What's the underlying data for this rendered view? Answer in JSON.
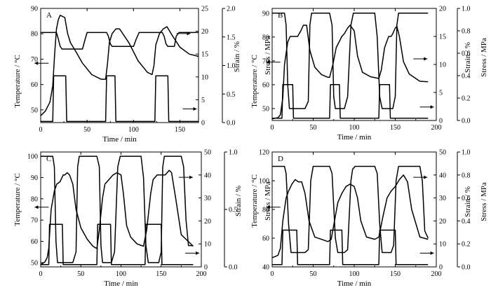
{
  "chart_data": [
    {
      "type": "line",
      "panel": "A",
      "xlabel": "Time / min",
      "ylabel_left": "Temperature / °C",
      "ylabel_right1": "Strain / %",
      "ylabel_right2": "Stress / MPa",
      "xlim": [
        0,
        170
      ],
      "x_ticks": [
        "0",
        "50",
        "100",
        "150"
      ],
      "ylim_temp": [
        45,
        90
      ],
      "temp_ticks": [
        "50",
        "60",
        "70",
        "80",
        "90"
      ],
      "ylim_strain": [
        0,
        25
      ],
      "strain_ticks": [
        "0",
        "5",
        "10",
        "15",
        "20",
        "25"
      ],
      "ylim_stress": [
        0,
        2.0
      ],
      "stress_ticks": [
        "0.0",
        "0.5",
        "1.0",
        "1.5",
        "2.0"
      ],
      "series": [
        {
          "axis": "temp",
          "x": [
            0,
            17,
            19,
            21,
            23,
            27,
            31,
            45,
            48,
            50,
            71,
            73,
            75,
            77,
            79,
            82,
            87,
            100,
            103,
            106,
            131,
            133,
            135,
            137,
            140,
            144,
            146,
            149,
            170
          ],
          "y": [
            80.5,
            80.5,
            78,
            75,
            74,
            74,
            74,
            74,
            78,
            80.5,
            80.5,
            79,
            76,
            75,
            75,
            75,
            75,
            75,
            78,
            80.5,
            80.5,
            79,
            76,
            75,
            75,
            75,
            79,
            80.5,
            80.5
          ]
        },
        {
          "axis": "strain",
          "x": [
            0,
            5,
            10,
            13,
            15,
            17,
            19,
            21,
            26,
            29,
            32,
            38,
            45,
            55,
            65,
            70,
            72,
            74,
            77,
            81,
            85,
            95,
            105,
            115,
            120,
            122,
            124,
            128,
            132,
            136,
            142,
            150,
            160,
            170
          ],
          "y": [
            1.5,
            2.5,
            4.5,
            8,
            15,
            20.5,
            22.5,
            23.5,
            23,
            19.5,
            17.5,
            15.5,
            13,
            10.5,
            9.5,
            9.5,
            13,
            17.5,
            19.5,
            20.5,
            20.5,
            17.5,
            13.5,
            11,
            10.5,
            12.5,
            17,
            19.5,
            20.5,
            21,
            19,
            16.5,
            15,
            14.5
          ]
        },
        {
          "axis": "stress",
          "x": [
            0,
            13,
            14,
            27,
            28,
            45,
            70,
            71,
            80,
            81,
            100,
            123,
            124,
            137,
            138,
            145,
            170
          ],
          "y": [
            0.02,
            0.02,
            0.82,
            0.82,
            0.02,
            0.02,
            0.02,
            0.82,
            0.82,
            0.02,
            0.02,
            0.02,
            0.82,
            0.82,
            0.02,
            0.02,
            0.02
          ]
        }
      ],
      "arrows": [
        "left",
        "right",
        "right"
      ]
    },
    {
      "type": "line",
      "panel": "B",
      "xlabel": "Time / min",
      "ylabel_left": "Temperature / °C",
      "ylabel_right1": "Strain / %",
      "ylabel_right2": "Stress / MPa",
      "xlim": [
        0,
        200
      ],
      "x_ticks": [
        "0",
        "50",
        "100",
        "150",
        "200"
      ],
      "ylim_temp": [
        45,
        92
      ],
      "temp_ticks": [
        "50",
        "60",
        "70",
        "80",
        "90"
      ],
      "ylim_strain": [
        0,
        20
      ],
      "strain_ticks": [
        "0",
        "5",
        "10",
        "15",
        "20"
      ],
      "ylim_stress": [
        0,
        1.0
      ],
      "stress_ticks": [
        "0.0",
        "0.2",
        "0.4",
        "0.6",
        "0.8",
        "1.0"
      ],
      "series": [
        {
          "axis": "temp",
          "x": [
            0,
            15,
            17,
            19,
            21,
            24,
            30,
            32,
            40,
            44,
            46,
            48,
            70,
            73,
            75,
            77,
            80,
            85,
            88,
            92,
            96,
            99,
            101,
            125,
            128,
            131,
            134,
            138,
            142,
            147,
            150,
            152,
            154,
            190
          ],
          "y": [
            90,
            90,
            85,
            60,
            50,
            50,
            50,
            50,
            50,
            53,
            85,
            90,
            90,
            85,
            55,
            50,
            50,
            50,
            50,
            55,
            85,
            90,
            90,
            90,
            80,
            55,
            50,
            50,
            50,
            50,
            55,
            85,
            90,
            90
          ]
        },
        {
          "axis": "strain",
          "x": [
            0,
            7,
            10,
            13,
            15,
            19,
            22,
            28,
            31,
            35,
            38,
            42,
            46,
            52,
            60,
            68,
            70,
            74,
            78,
            85,
            88,
            92,
            95,
            100,
            104,
            110,
            120,
            130,
            133,
            137,
            142,
            145,
            147,
            150,
            152,
            155,
            160,
            167,
            180,
            190
          ],
          "y": [
            0.3,
            0.5,
            1,
            4,
            10,
            14,
            15,
            15,
            15,
            16,
            17,
            17,
            12.5,
            9.5,
            8.2,
            7.7,
            7.7,
            10,
            13,
            15,
            15.5,
            16.5,
            17,
            16,
            11.5,
            8.6,
            7.8,
            7.5,
            9,
            13,
            15,
            15,
            15.5,
            16.5,
            16.8,
            15,
            10.5,
            8.3,
            7,
            6.9
          ]
        },
        {
          "axis": "stress",
          "x": [
            0,
            12,
            13,
            25,
            26,
            70,
            71,
            82,
            83,
            130,
            131,
            143,
            144,
            190
          ],
          "y": [
            0.02,
            0.02,
            0.32,
            0.32,
            0.02,
            0.02,
            0.32,
            0.32,
            0.02,
            0.02,
            0.32,
            0.32,
            0.02,
            0.02
          ]
        }
      ],
      "arrows": [
        "left",
        "right",
        "right"
      ]
    },
    {
      "type": "line",
      "panel": "C",
      "xlabel": "Time / min",
      "ylabel_left": "Temperature / °C",
      "ylabel_right1": "Strain / %",
      "ylabel_right2": "Stress / MPa",
      "xlim": [
        0,
        200
      ],
      "x_ticks": [
        "0",
        "50",
        "100",
        "150",
        "200"
      ],
      "ylim_temp": [
        48,
        102
      ],
      "temp_ticks": [
        "50",
        "60",
        "70",
        "80",
        "90",
        "100"
      ],
      "ylim_strain": [
        0,
        50
      ],
      "strain_ticks": [
        "0",
        "10",
        "20",
        "30",
        "40",
        "50"
      ],
      "ylim_stress": [
        0,
        1.0
      ],
      "stress_ticks": [
        "0.0",
        "0.5",
        "1.0"
      ],
      "series": [
        {
          "axis": "temp",
          "x": [
            0,
            15,
            17,
            19,
            21,
            24,
            30,
            32,
            40,
            44,
            46,
            48,
            70,
            73,
            75,
            77,
            80,
            85,
            88,
            92,
            96,
            99,
            101,
            125,
            128,
            131,
            134,
            138,
            142,
            147,
            150,
            152,
            154,
            175,
            178,
            181,
            184,
            190
          ],
          "y": [
            100,
            100,
            95,
            60,
            50,
            50,
            50,
            50,
            50,
            55,
            95,
            100,
            100,
            95,
            58,
            50,
            50,
            50,
            50,
            55,
            95,
            100,
            100,
            100,
            90,
            58,
            50,
            50,
            50,
            50,
            55,
            95,
            100,
            100,
            95,
            70,
            58,
            58
          ]
        },
        {
          "axis": "strain",
          "x": [
            0,
            5,
            8,
            10,
            13,
            17,
            20,
            24,
            28,
            30,
            33,
            36,
            40,
            44,
            50,
            58,
            65,
            70,
            73,
            77,
            80,
            85,
            90,
            95,
            100,
            103,
            107,
            112,
            120,
            128,
            132,
            137,
            140,
            145,
            150,
            155,
            160,
            163,
            168,
            175,
            190
          ],
          "y": [
            1,
            2,
            4,
            8,
            25,
            33,
            36,
            37,
            40,
            40,
            41,
            40,
            36,
            25,
            17,
            12,
            9,
            8,
            16,
            30,
            36,
            38,
            40,
            41,
            40,
            32,
            18,
            13,
            10,
            9,
            16,
            32,
            38,
            40,
            40,
            40,
            42,
            41,
            30,
            14,
            9
          ]
        },
        {
          "axis": "stress",
          "x": [
            0,
            10,
            11,
            27,
            28,
            70,
            71,
            87,
            88,
            130,
            131,
            150,
            151,
            190
          ],
          "y": [
            0.02,
            0.02,
            0.37,
            0.37,
            0.02,
            0.02,
            0.37,
            0.37,
            0.02,
            0.02,
            0.37,
            0.37,
            0.02,
            0.02
          ]
        }
      ],
      "arrows": [
        "left",
        "right",
        "right"
      ]
    },
    {
      "type": "line",
      "panel": "D",
      "xlabel": "Time / min",
      "ylabel_left": "Temperature / °C",
      "ylabel_right1": "Strain / %",
      "ylabel_right2": "Stress / MPa",
      "xlim": [
        0,
        200
      ],
      "x_ticks": [
        "0",
        "50",
        "100",
        "150",
        "200"
      ],
      "ylim_temp": [
        40,
        120
      ],
      "temp_ticks": [
        "40",
        "60",
        "80",
        "100",
        "120"
      ],
      "ylim_strain": [
        0,
        50
      ],
      "strain_ticks": [
        "0",
        "10",
        "20",
        "30",
        "40",
        "50"
      ],
      "ylim_stress": [
        0,
        1.0
      ],
      "stress_ticks": [
        "0.0",
        "0.2",
        "0.4",
        "0.6",
        "0.8",
        "1.0"
      ],
      "series": [
        {
          "axis": "temp",
          "x": [
            0,
            15,
            17,
            20,
            23,
            30,
            34,
            40,
            44,
            47,
            50,
            70,
            73,
            77,
            80,
            88,
            92,
            96,
            98,
            101,
            125,
            128,
            131,
            134,
            140,
            145,
            148,
            151,
            154,
            180,
            183,
            186,
            190
          ],
          "y": [
            110,
            110,
            105,
            70,
            50,
            50,
            50,
            50,
            52,
            100,
            110,
            110,
            105,
            60,
            50,
            50,
            52,
            100,
            108,
            110,
            110,
            105,
            70,
            50,
            50,
            50,
            55,
            100,
            110,
            110,
            100,
            65,
            60
          ]
        },
        {
          "axis": "strain",
          "x": [
            0,
            7,
            10,
            13,
            17,
            20,
            24,
            28,
            32,
            36,
            40,
            45,
            52,
            60,
            68,
            72,
            76,
            80,
            85,
            90,
            95,
            100,
            104,
            108,
            115,
            125,
            130,
            135,
            140,
            145,
            150,
            155,
            160,
            165,
            170,
            180,
            190
          ],
          "y": [
            4,
            5,
            8,
            20,
            30,
            33,
            36,
            38,
            37,
            37,
            32,
            20,
            13,
            12,
            11,
            12,
            20,
            28,
            32,
            35,
            36,
            35,
            30,
            20,
            13,
            12,
            13,
            22,
            30,
            33,
            35,
            38,
            40,
            37,
            25,
            13,
            12
          ]
        },
        {
          "axis": "stress",
          "x": [
            0,
            12,
            13,
            30,
            31,
            70,
            71,
            85,
            86,
            130,
            131,
            150,
            151,
            190
          ],
          "y": [
            0.02,
            0.02,
            0.32,
            0.32,
            0.02,
            0.02,
            0.32,
            0.32,
            0.02,
            0.02,
            0.32,
            0.32,
            0.02,
            0.02
          ]
        }
      ],
      "arrows": [
        "left",
        "right",
        "right"
      ]
    }
  ]
}
